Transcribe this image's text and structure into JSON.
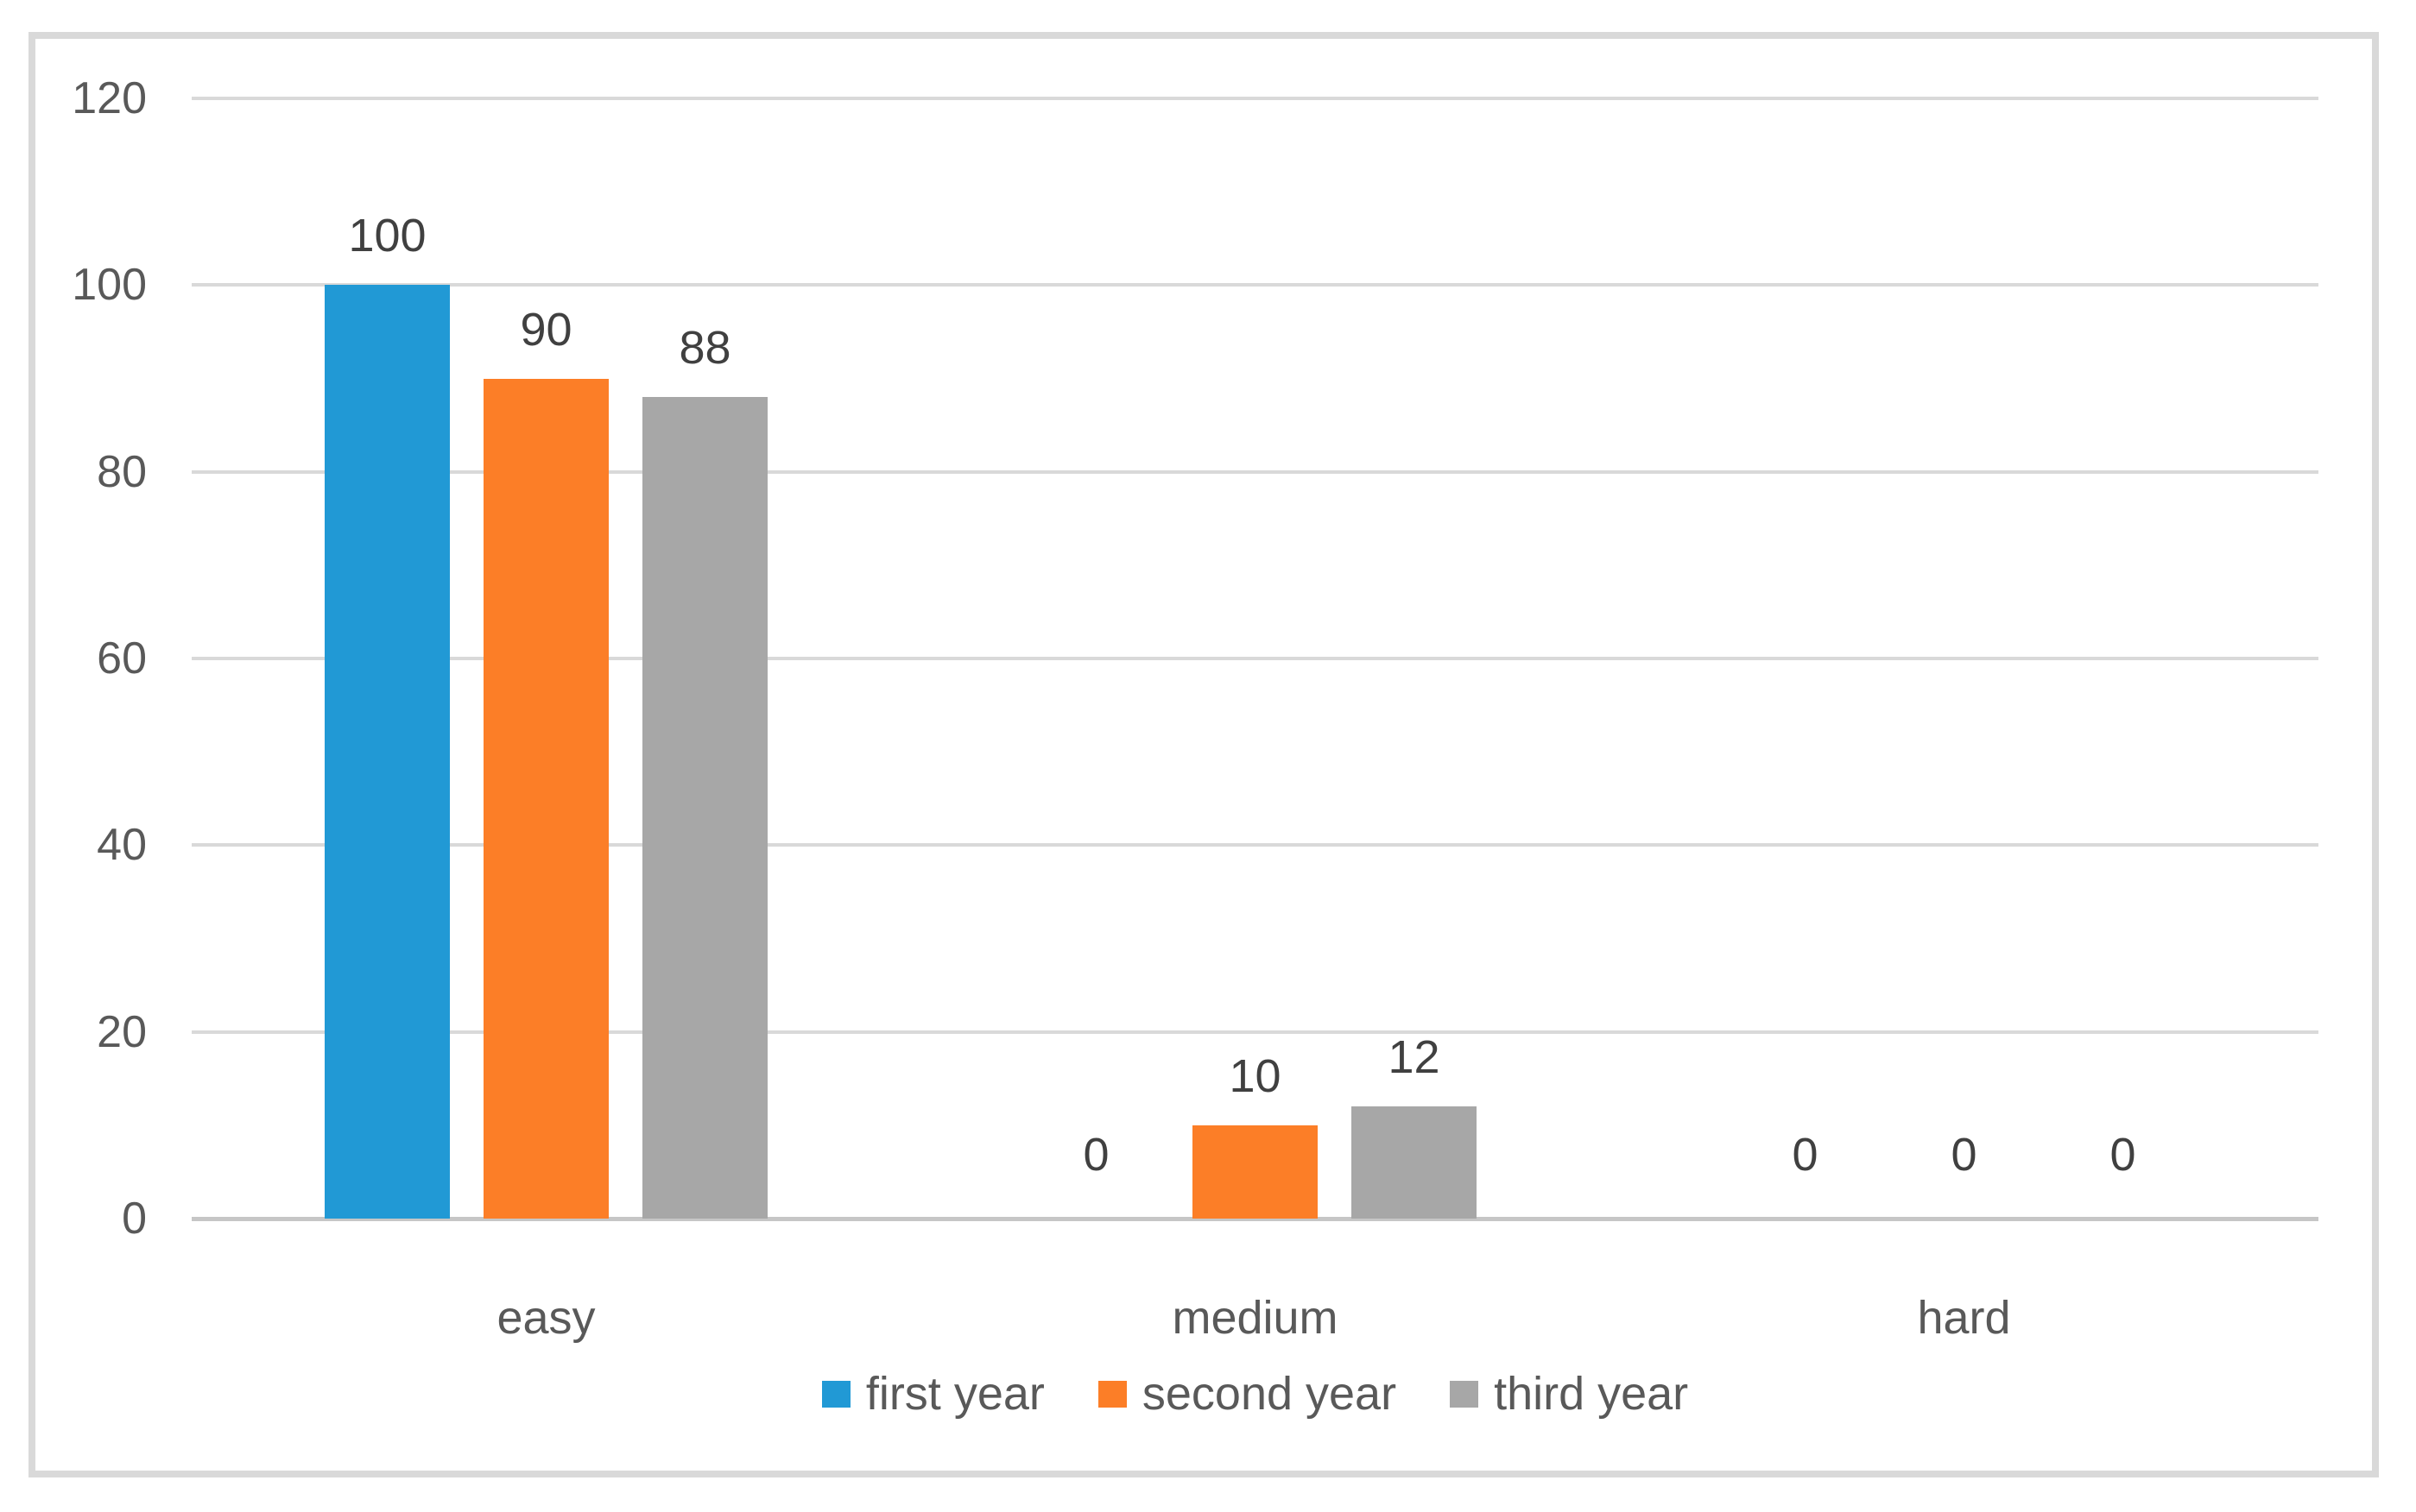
{
  "chart_data": {
    "type": "bar",
    "title": "",
    "categories": [
      "easy",
      "medium",
      "hard"
    ],
    "series": [
      {
        "name": "first year",
        "color": "#2199D5",
        "values": [
          100,
          0,
          0
        ]
      },
      {
        "name": "second year",
        "color": "#FC7E27",
        "values": [
          90,
          10,
          0
        ]
      },
      {
        "name": "third year",
        "color": "#A7A7A7",
        "values": [
          88,
          12,
          0
        ]
      }
    ],
    "data_labels": [
      "100",
      "90",
      "88",
      "0",
      "10",
      "12",
      "0",
      "0",
      "0"
    ],
    "xlabel": "",
    "ylabel": "",
    "y_axis": {
      "min": 0,
      "max": 120,
      "tick_step": 20,
      "ticks": [
        0,
        20,
        40,
        60,
        80,
        100,
        120
      ],
      "tick_labels": [
        "0",
        "20",
        "40",
        "60",
        "80",
        "100",
        "120"
      ]
    },
    "grid": true,
    "legend_position": "bottom",
    "legend_entries": [
      "first year",
      "second year",
      "third year"
    ]
  },
  "colors": {
    "background": "#FFFFFF",
    "frame_border": "#D9D9D9",
    "gridline": "#D9D9D9",
    "axis_line": "#C6C6C6",
    "tick_text": "#595959",
    "label_text": "#404040",
    "series_blue": "#2199D5",
    "series_orange": "#FC7E27",
    "series_gray": "#A7A7A7"
  }
}
